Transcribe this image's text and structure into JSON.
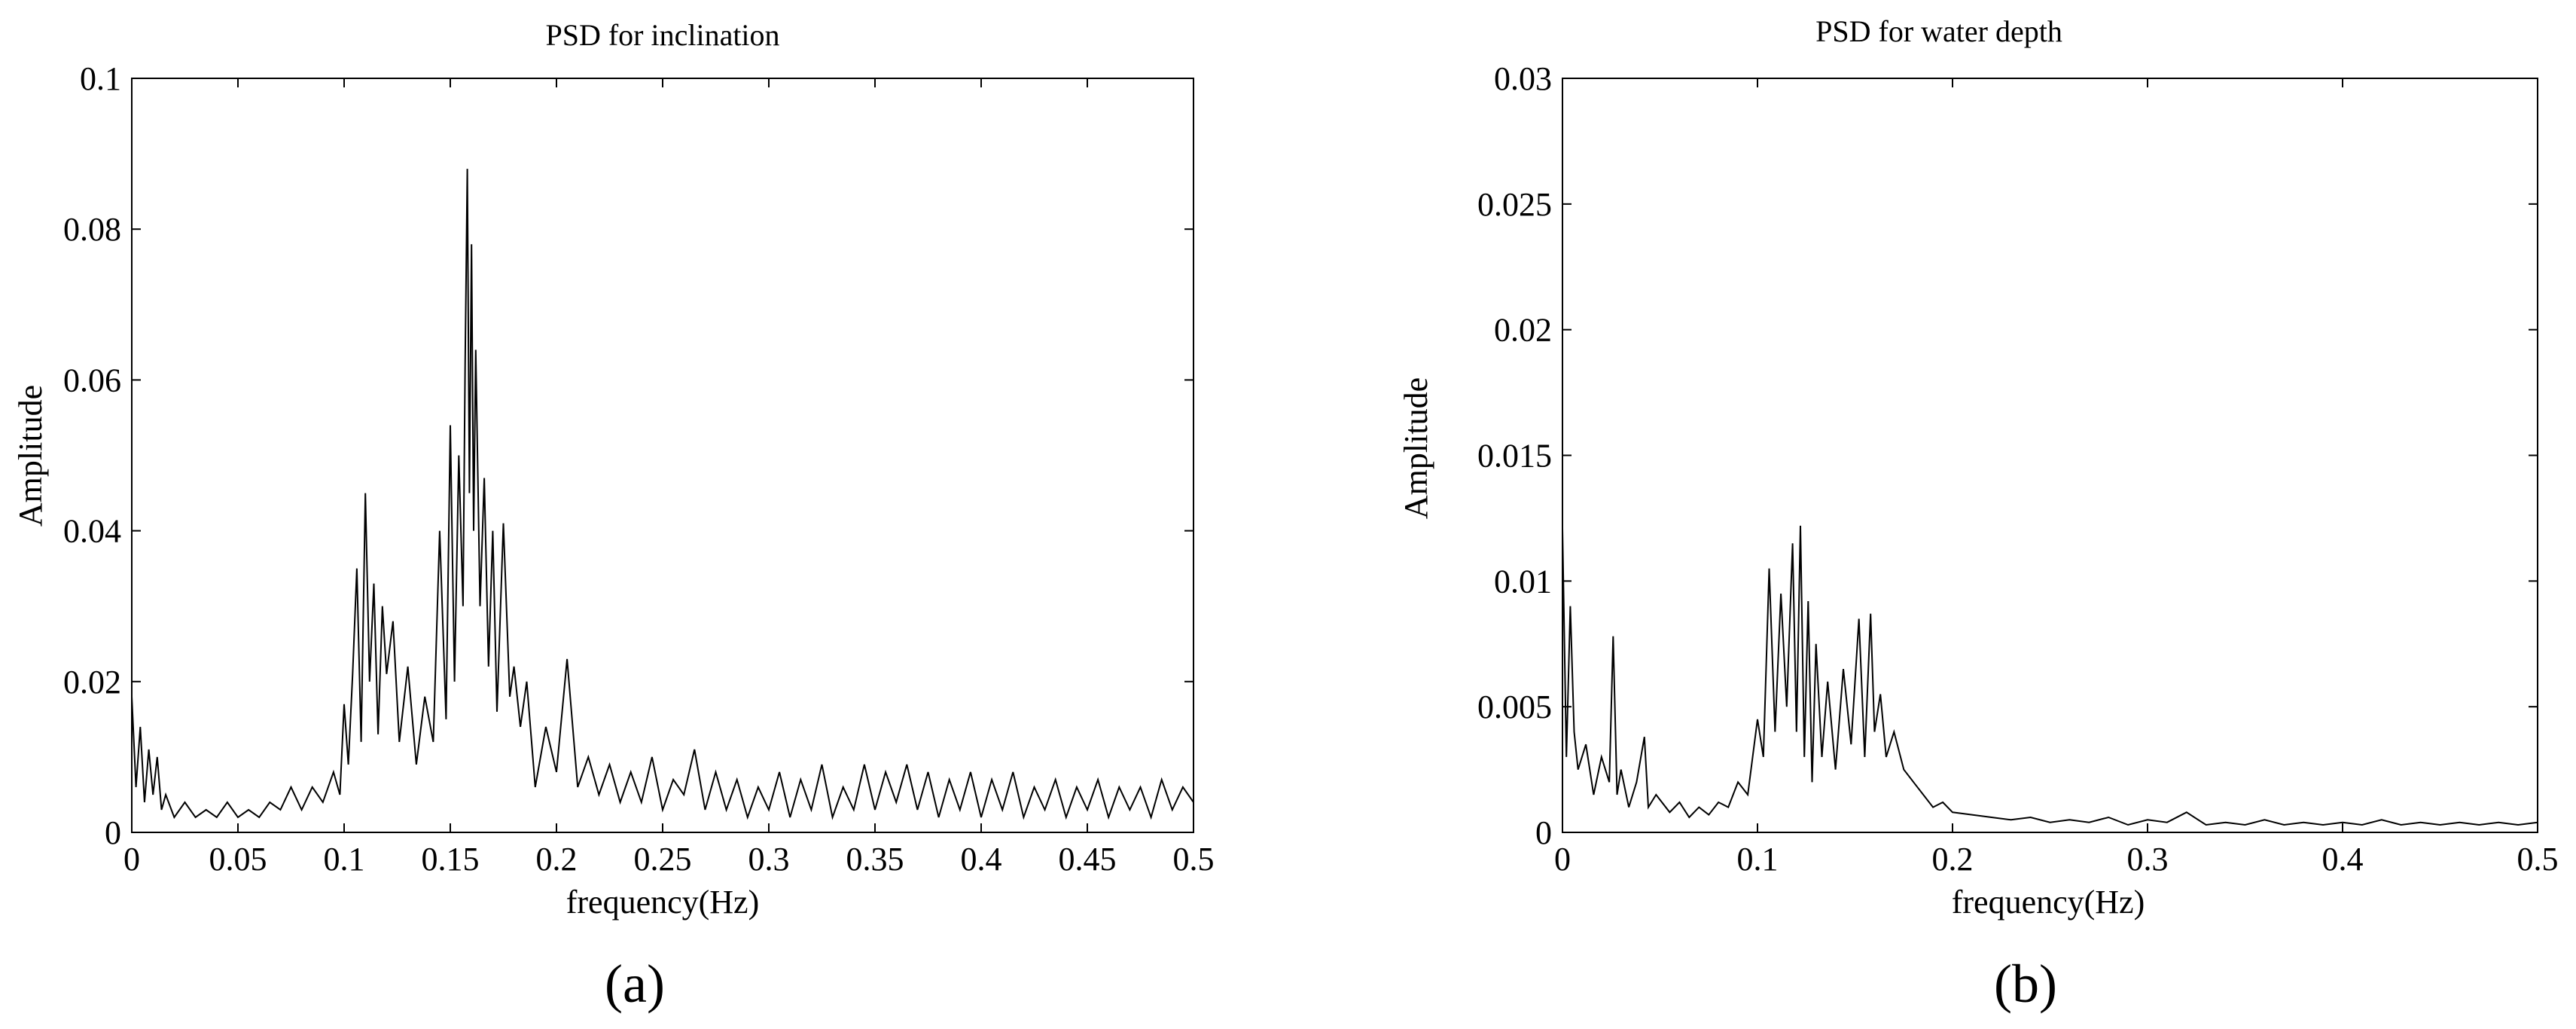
{
  "chart_data": [
    {
      "type": "line",
      "title": "PSD for inclination",
      "xlabel": "frequency(Hz)",
      "ylabel": "Amplitude",
      "panel_label": "(a)",
      "xlim": [
        0,
        0.5
      ],
      "ylim": [
        0,
        0.1
      ],
      "xticks": [
        0,
        0.05,
        0.1,
        0.15,
        0.2,
        0.25,
        0.3,
        0.35,
        0.4,
        0.45,
        0.5
      ],
      "xtick_labels": [
        "0",
        "0.05",
        "0.1",
        "0.15",
        "0.2",
        "0.25",
        "0.3",
        "0.35",
        "0.4",
        "0.45",
        "0.5"
      ],
      "yticks": [
        0,
        0.02,
        0.04,
        0.06,
        0.08,
        0.1
      ],
      "ytick_labels": [
        "0",
        "0.02",
        "0.04",
        "0.06",
        "0.08",
        "0.1"
      ],
      "grid": false,
      "line_color": "#000000",
      "series": [
        {
          "x": [
            0,
            0.002,
            0.004,
            0.006,
            0.008,
            0.01,
            0.012,
            0.014,
            0.016,
            0.02,
            0.025,
            0.03,
            0.035,
            0.04,
            0.045,
            0.05,
            0.055,
            0.06,
            0.065,
            0.07,
            0.075,
            0.08,
            0.085,
            0.09,
            0.095,
            0.098,
            0.1,
            0.102,
            0.104,
            0.106,
            0.108,
            0.11,
            0.112,
            0.114,
            0.116,
            0.118,
            0.12,
            0.123,
            0.126,
            0.13,
            0.134,
            0.138,
            0.142,
            0.145,
            0.148,
            0.15,
            0.152,
            0.154,
            0.156,
            0.157,
            0.158,
            0.159,
            0.16,
            0.161,
            0.162,
            0.164,
            0.166,
            0.168,
            0.17,
            0.172,
            0.175,
            0.178,
            0.18,
            0.183,
            0.186,
            0.19,
            0.195,
            0.2,
            0.205,
            0.21,
            0.215,
            0.22,
            0.225,
            0.23,
            0.235,
            0.24,
            0.245,
            0.25,
            0.255,
            0.26,
            0.265,
            0.27,
            0.275,
            0.28,
            0.285,
            0.29,
            0.295,
            0.3,
            0.305,
            0.31,
            0.315,
            0.32,
            0.325,
            0.33,
            0.335,
            0.34,
            0.345,
            0.35,
            0.355,
            0.36,
            0.365,
            0.37,
            0.375,
            0.38,
            0.385,
            0.39,
            0.395,
            0.4,
            0.405,
            0.41,
            0.415,
            0.42,
            0.425,
            0.43,
            0.435,
            0.44,
            0.445,
            0.45,
            0.455,
            0.46,
            0.465,
            0.47,
            0.475,
            0.48,
            0.485,
            0.49,
            0.495,
            0.5
          ],
          "y": [
            0.018,
            0.006,
            0.014,
            0.004,
            0.011,
            0.005,
            0.01,
            0.003,
            0.005,
            0.002,
            0.004,
            0.002,
            0.003,
            0.002,
            0.004,
            0.002,
            0.003,
            0.002,
            0.004,
            0.003,
            0.006,
            0.003,
            0.006,
            0.004,
            0.008,
            0.005,
            0.017,
            0.009,
            0.021,
            0.035,
            0.012,
            0.045,
            0.02,
            0.033,
            0.013,
            0.03,
            0.021,
            0.028,
            0.012,
            0.022,
            0.009,
            0.018,
            0.012,
            0.04,
            0.015,
            0.054,
            0.02,
            0.05,
            0.03,
            0.062,
            0.088,
            0.045,
            0.078,
            0.04,
            0.064,
            0.03,
            0.047,
            0.022,
            0.04,
            0.016,
            0.041,
            0.018,
            0.022,
            0.014,
            0.02,
            0.006,
            0.014,
            0.008,
            0.023,
            0.006,
            0.01,
            0.005,
            0.009,
            0.004,
            0.008,
            0.004,
            0.01,
            0.003,
            0.007,
            0.005,
            0.011,
            0.003,
            0.008,
            0.003,
            0.007,
            0.002,
            0.006,
            0.003,
            0.008,
            0.002,
            0.007,
            0.003,
            0.009,
            0.002,
            0.006,
            0.003,
            0.009,
            0.003,
            0.008,
            0.004,
            0.009,
            0.003,
            0.008,
            0.002,
            0.007,
            0.003,
            0.008,
            0.002,
            0.007,
            0.003,
            0.008,
            0.002,
            0.006,
            0.003,
            0.007,
            0.002,
            0.006,
            0.003,
            0.007,
            0.002,
            0.006,
            0.003,
            0.006,
            0.002,
            0.007,
            0.003,
            0.006,
            0.004
          ]
        }
      ]
    },
    {
      "type": "line",
      "title": "PSD for water depth",
      "xlabel": "frequency(Hz)",
      "ylabel": "Amplitude",
      "panel_label": "(b)",
      "xlim": [
        0,
        0.5
      ],
      "ylim": [
        0,
        0.03
      ],
      "xticks": [
        0,
        0.1,
        0.2,
        0.3,
        0.4,
        0.5
      ],
      "xtick_labels": [
        "0",
        "0.1",
        "0.2",
        "0.3",
        "0.4",
        "0.5"
      ],
      "yticks": [
        0,
        0.005,
        0.01,
        0.015,
        0.02,
        0.025,
        0.03
      ],
      "ytick_labels": [
        "0",
        "0.005",
        "0.01",
        "0.015",
        "0.02",
        "0.025",
        "0.03"
      ],
      "grid": false,
      "line_color": "#000000",
      "series": [
        {
          "x": [
            0,
            0.002,
            0.004,
            0.006,
            0.008,
            0.012,
            0.016,
            0.02,
            0.024,
            0.026,
            0.028,
            0.03,
            0.034,
            0.038,
            0.042,
            0.044,
            0.048,
            0.055,
            0.06,
            0.065,
            0.07,
            0.075,
            0.08,
            0.085,
            0.09,
            0.095,
            0.1,
            0.103,
            0.106,
            0.109,
            0.112,
            0.115,
            0.118,
            0.12,
            0.122,
            0.124,
            0.126,
            0.128,
            0.13,
            0.133,
            0.136,
            0.14,
            0.144,
            0.148,
            0.152,
            0.155,
            0.158,
            0.16,
            0.163,
            0.166,
            0.17,
            0.175,
            0.18,
            0.185,
            0.19,
            0.195,
            0.2,
            0.21,
            0.22,
            0.23,
            0.24,
            0.25,
            0.26,
            0.27,
            0.28,
            0.29,
            0.3,
            0.31,
            0.32,
            0.33,
            0.34,
            0.35,
            0.36,
            0.37,
            0.38,
            0.39,
            0.4,
            0.41,
            0.42,
            0.43,
            0.44,
            0.45,
            0.46,
            0.47,
            0.48,
            0.49,
            0.5
          ],
          "y": [
            0.0121,
            0.003,
            0.009,
            0.004,
            0.0025,
            0.0035,
            0.0015,
            0.003,
            0.002,
            0.0078,
            0.0015,
            0.0025,
            0.001,
            0.002,
            0.0038,
            0.001,
            0.0015,
            0.0008,
            0.0012,
            0.0006,
            0.001,
            0.0007,
            0.0012,
            0.001,
            0.002,
            0.0015,
            0.0045,
            0.003,
            0.0105,
            0.004,
            0.0095,
            0.005,
            0.0115,
            0.004,
            0.0122,
            0.003,
            0.0092,
            0.002,
            0.0075,
            0.003,
            0.006,
            0.0025,
            0.0065,
            0.0035,
            0.0085,
            0.003,
            0.0087,
            0.004,
            0.0055,
            0.003,
            0.004,
            0.0025,
            0.002,
            0.0015,
            0.001,
            0.0012,
            0.0008,
            0.0007,
            0.0006,
            0.0005,
            0.0006,
            0.0004,
            0.0005,
            0.0004,
            0.0006,
            0.0003,
            0.0005,
            0.0004,
            0.0008,
            0.0003,
            0.0004,
            0.0003,
            0.0005,
            0.0003,
            0.0004,
            0.0003,
            0.0004,
            0.0003,
            0.0005,
            0.0003,
            0.0004,
            0.0003,
            0.0004,
            0.0003,
            0.0004,
            0.0003,
            0.0004
          ]
        }
      ]
    }
  ]
}
